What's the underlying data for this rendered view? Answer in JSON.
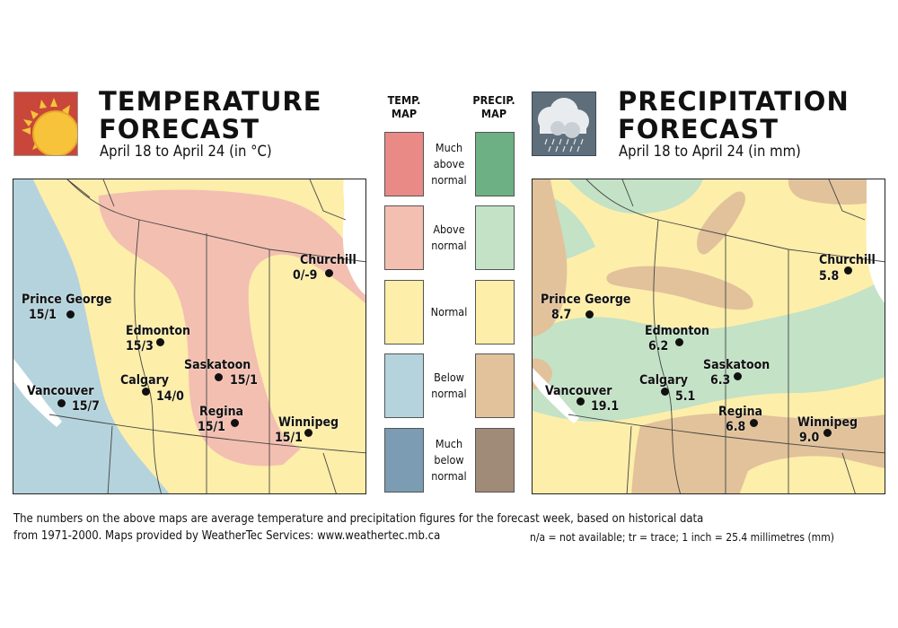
{
  "temperature": {
    "title": "TEMPERATURE\nFORECAST",
    "subtitle": "April 18 to April 24 (in °C)",
    "icon": "sun-icon",
    "cities": [
      {
        "name": "Churchill",
        "value": "0/-9"
      },
      {
        "name": "Prince George",
        "value": "15/1"
      },
      {
        "name": "Edmonton",
        "value": "15/3"
      },
      {
        "name": "Saskatoon",
        "value": "15/1"
      },
      {
        "name": "Calgary",
        "value": "14/0"
      },
      {
        "name": "Vancouver",
        "value": "15/7"
      },
      {
        "name": "Regina",
        "value": "15/1"
      },
      {
        "name": "Winnipeg",
        "value": "15/1"
      }
    ]
  },
  "precipitation": {
    "title": "PRECIPITATION\nFORECAST",
    "subtitle": "April 18 to April 24 (in mm)",
    "icon": "rain-cloud-icon",
    "cities": [
      {
        "name": "Churchill",
        "value": "5.8"
      },
      {
        "name": "Prince George",
        "value": "8.7"
      },
      {
        "name": "Edmonton",
        "value": "6.2"
      },
      {
        "name": "Saskatoon",
        "value": "6.3"
      },
      {
        "name": "Vancouver",
        "value": "19.1"
      },
      {
        "name": "Calgary",
        "value": "5.1"
      },
      {
        "name": "Regina",
        "value": "6.8"
      },
      {
        "name": "Winnipeg",
        "value": "9.0"
      }
    ]
  },
  "legend": {
    "temp_heading": "TEMP.\nMAP",
    "precip_heading": "PRECIP.\nMAP",
    "categories": [
      {
        "label": "Much\nabove\nnormal",
        "temp_color": "#e98a86",
        "precip_color": "#6cb083"
      },
      {
        "label": "Above\nnormal",
        "temp_color": "#f3bfb1",
        "precip_color": "#c3e2c6"
      },
      {
        "label": "Normal",
        "temp_color": "#fdeeaa",
        "precip_color": "#fdeeaa"
      },
      {
        "label": "Below\nnormal",
        "temp_color": "#b5d3dc",
        "precip_color": "#e1c29b"
      },
      {
        "label": "Much\nbelow\nnormal",
        "temp_color": "#7b9cb2",
        "precip_color": "#a08a78"
      }
    ]
  },
  "colors": {
    "water": "#ffffff",
    "border": "#444444",
    "sun_bg": "#c8473a",
    "sun_yellow": "#f6c33a",
    "cloud_bg": "#5e6e7a"
  },
  "footer": {
    "line1": "The numbers on the above maps are average temperature and precipitation figures for the forecast week, based on historical data",
    "line2": "from 1971-2000. Maps provided by WeatherTec Services: www.weathertec.mb.ca",
    "note": "n/a = not available;  tr = trace;  1 inch = 25.4 millimetres (mm)"
  }
}
